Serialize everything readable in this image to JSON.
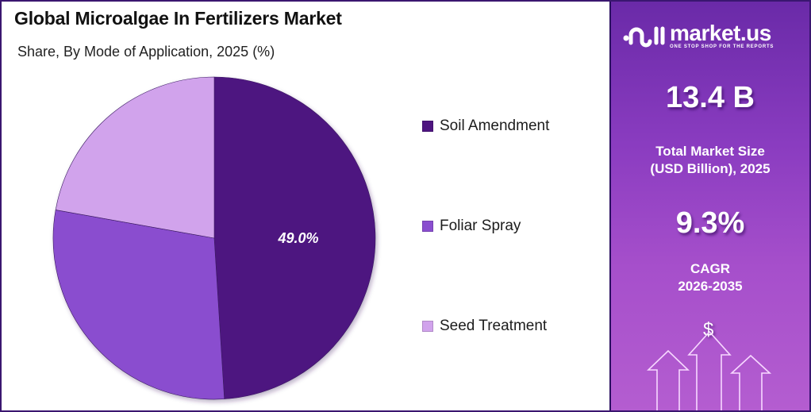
{
  "header": {
    "title": "Global Microalgae In Fertilizers Market",
    "subtitle": "Share, By Mode of Application, 2025 (%)"
  },
  "legend": [
    {
      "label": "Soil Amendment",
      "color": "#4e1580"
    },
    {
      "label": "Foliar Spray",
      "color": "#8a4ecf"
    },
    {
      "label": "Seed Treatment",
      "color": "#d1a3ec"
    }
  ],
  "pie_label": "49.0%",
  "brand": {
    "name": "market.us",
    "tagline": "ONE STOP SHOP FOR THE REPORTS"
  },
  "stats": {
    "market_size_value": "13.4 B",
    "market_size_label_line1": "Total Market Size",
    "market_size_label_line2": "(USD Billion), 2025",
    "cagr_value": "9.3%",
    "cagr_label_line1": "CAGR",
    "cagr_label_line2": "2026-2035"
  },
  "decor": {
    "dollar_symbol": "$"
  },
  "chart_data": {
    "type": "pie",
    "title": "Global Microalgae In Fertilizers Market",
    "subtitle": "Share, By Mode of Application, 2025 (%)",
    "categories": [
      "Soil Amendment",
      "Foliar Spray",
      "Seed Treatment"
    ],
    "values": [
      49.0,
      28.8,
      22.2
    ],
    "labeled_values": {
      "Soil Amendment": "49.0%"
    },
    "colors": [
      "#4e1580",
      "#8a4ecf",
      "#d1a3ec"
    ],
    "start_angle_deg": 0,
    "direction": "clockwise",
    "legend_position": "right"
  }
}
